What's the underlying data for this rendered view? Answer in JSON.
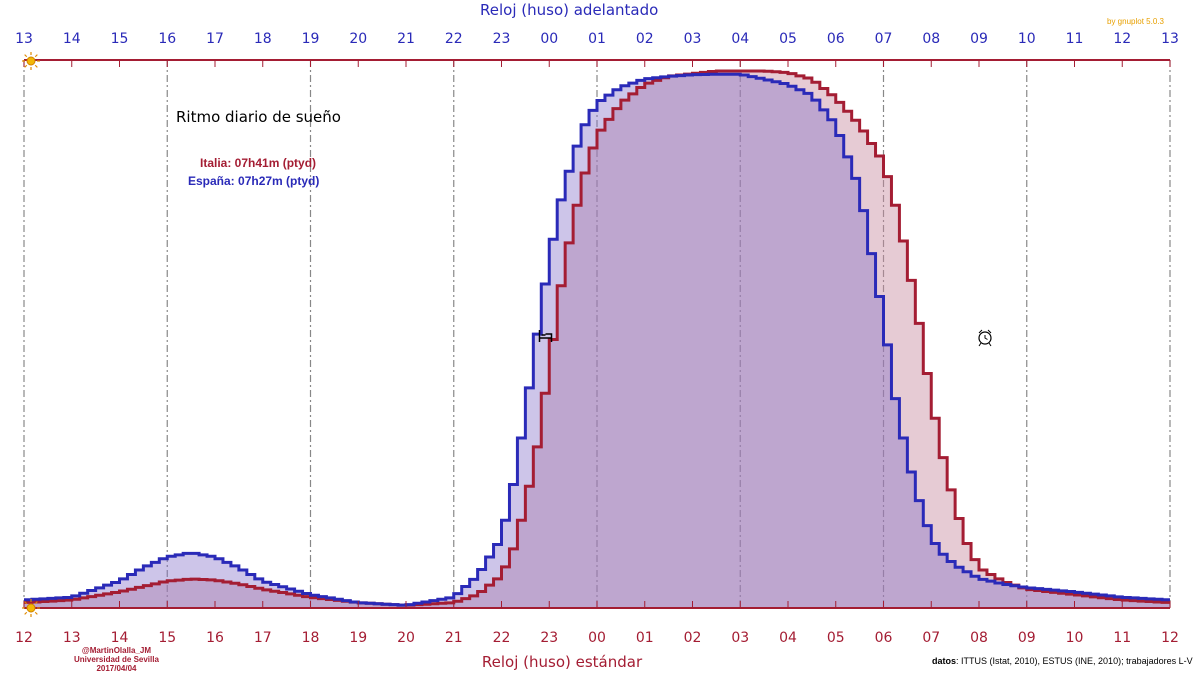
{
  "chart_data": {
    "type": "area",
    "title": "Ritmo diario de sueño",
    "xlabel": "Reloj (huso) estándar",
    "x2label": "Reloj (huso) adelantado",
    "x_ticks": [
      "12",
      "13",
      "14",
      "15",
      "16",
      "17",
      "18",
      "19",
      "20",
      "21",
      "22",
      "23",
      "00",
      "01",
      "02",
      "03",
      "04",
      "05",
      "06",
      "07",
      "08",
      "09",
      "10",
      "11",
      "12"
    ],
    "x2_ticks": [
      "13",
      "14",
      "15",
      "16",
      "17",
      "18",
      "19",
      "20",
      "21",
      "22",
      "23",
      "00",
      "01",
      "02",
      "03",
      "04",
      "05",
      "06",
      "07",
      "08",
      "09",
      "10",
      "11",
      "12",
      "13"
    ],
    "x_hours_range": [
      12,
      36
    ],
    "grid": "vertical dash-dot lines every 3 hours",
    "series": [
      {
        "name": "Italia",
        "legend": "Italia: 07h41m (ptyd)",
        "color": "#a41d33",
        "fill": "rgba(200,140,160,0.45)",
        "points": [
          [
            12.0,
            0.01
          ],
          [
            13.0,
            0.015
          ],
          [
            14.0,
            0.03
          ],
          [
            14.5,
            0.04
          ],
          [
            15.0,
            0.05
          ],
          [
            15.5,
            0.054
          ],
          [
            16.0,
            0.052
          ],
          [
            16.5,
            0.045
          ],
          [
            17.0,
            0.035
          ],
          [
            18.0,
            0.02
          ],
          [
            19.0,
            0.01
          ],
          [
            20.0,
            0.005
          ],
          [
            21.0,
            0.01
          ],
          [
            21.5,
            0.025
          ],
          [
            22.0,
            0.06
          ],
          [
            22.25,
            0.11
          ],
          [
            22.5,
            0.19
          ],
          [
            22.75,
            0.3
          ],
          [
            23.0,
            0.45
          ],
          [
            23.25,
            0.6
          ],
          [
            23.5,
            0.72
          ],
          [
            23.75,
            0.81
          ],
          [
            24.0,
            0.88
          ],
          [
            24.5,
            0.94
          ],
          [
            25.0,
            0.975
          ],
          [
            25.5,
            0.99
          ],
          [
            26.0,
            0.995
          ],
          [
            26.5,
            1.0
          ],
          [
            27.0,
            1.0
          ],
          [
            27.5,
            1.0
          ],
          [
            28.0,
            0.997
          ],
          [
            28.5,
            0.985
          ],
          [
            29.0,
            0.95
          ],
          [
            29.5,
            0.9
          ],
          [
            30.0,
            0.83
          ],
          [
            30.25,
            0.75
          ],
          [
            30.5,
            0.65
          ],
          [
            30.75,
            0.53
          ],
          [
            31.0,
            0.39
          ],
          [
            31.25,
            0.28
          ],
          [
            31.5,
            0.19
          ],
          [
            31.75,
            0.12
          ],
          [
            32.0,
            0.075
          ],
          [
            32.5,
            0.05
          ],
          [
            33.0,
            0.035
          ],
          [
            34.0,
            0.025
          ],
          [
            35.0,
            0.015
          ],
          [
            36.0,
            0.01
          ]
        ]
      },
      {
        "name": "España",
        "legend": "España: 07h27m (ptyd)",
        "color": "#2a2ab8",
        "fill": "rgba(130,110,200,0.40)",
        "points": [
          [
            12.0,
            0.015
          ],
          [
            13.0,
            0.02
          ],
          [
            14.0,
            0.05
          ],
          [
            14.5,
            0.075
          ],
          [
            15.0,
            0.095
          ],
          [
            15.5,
            0.103
          ],
          [
            16.0,
            0.095
          ],
          [
            16.5,
            0.075
          ],
          [
            17.0,
            0.05
          ],
          [
            18.0,
            0.025
          ],
          [
            19.0,
            0.01
          ],
          [
            20.0,
            0.005
          ],
          [
            21.0,
            0.02
          ],
          [
            21.5,
            0.06
          ],
          [
            22.0,
            0.13
          ],
          [
            22.25,
            0.23
          ],
          [
            22.5,
            0.36
          ],
          [
            22.75,
            0.51
          ],
          [
            23.0,
            0.65
          ],
          [
            23.25,
            0.76
          ],
          [
            23.5,
            0.84
          ],
          [
            23.75,
            0.9
          ],
          [
            24.0,
            0.94
          ],
          [
            24.5,
            0.97
          ],
          [
            25.0,
            0.985
          ],
          [
            25.5,
            0.99
          ],
          [
            26.0,
            0.993
          ],
          [
            26.5,
            0.994
          ],
          [
            27.0,
            0.994
          ],
          [
            27.5,
            0.985
          ],
          [
            28.0,
            0.975
          ],
          [
            28.5,
            0.955
          ],
          [
            29.0,
            0.9
          ],
          [
            29.5,
            0.78
          ],
          [
            30.0,
            0.54
          ],
          [
            30.25,
            0.39
          ],
          [
            30.5,
            0.28
          ],
          [
            30.75,
            0.2
          ],
          [
            31.0,
            0.13
          ],
          [
            31.25,
            0.1
          ],
          [
            31.5,
            0.08
          ],
          [
            32.0,
            0.055
          ],
          [
            32.5,
            0.045
          ],
          [
            33.0,
            0.038
          ],
          [
            34.0,
            0.03
          ],
          [
            35.0,
            0.02
          ],
          [
            36.0,
            0.015
          ]
        ]
      }
    ]
  },
  "annotations": {
    "credit_line1": "@MartinOlalla_JM",
    "credit_line2": "Universidad de Sevilla",
    "credit_line3": "2017/04/04",
    "sources_label": "datos",
    "sources_text": ": ITTUS (Istat, 2010), ESTUS (INE, 2010); trabajadores L-V",
    "gnuplot": "by gnuplot 5.0.3",
    "sun_icon": "sun-icon",
    "bed_icon": "bed-icon",
    "alarm_icon": "alarm-clock-icon"
  },
  "colors": {
    "italia": "#a41d33",
    "espana": "#2a2ab8",
    "overlap": "#b39ec6",
    "grid": "#888888"
  }
}
